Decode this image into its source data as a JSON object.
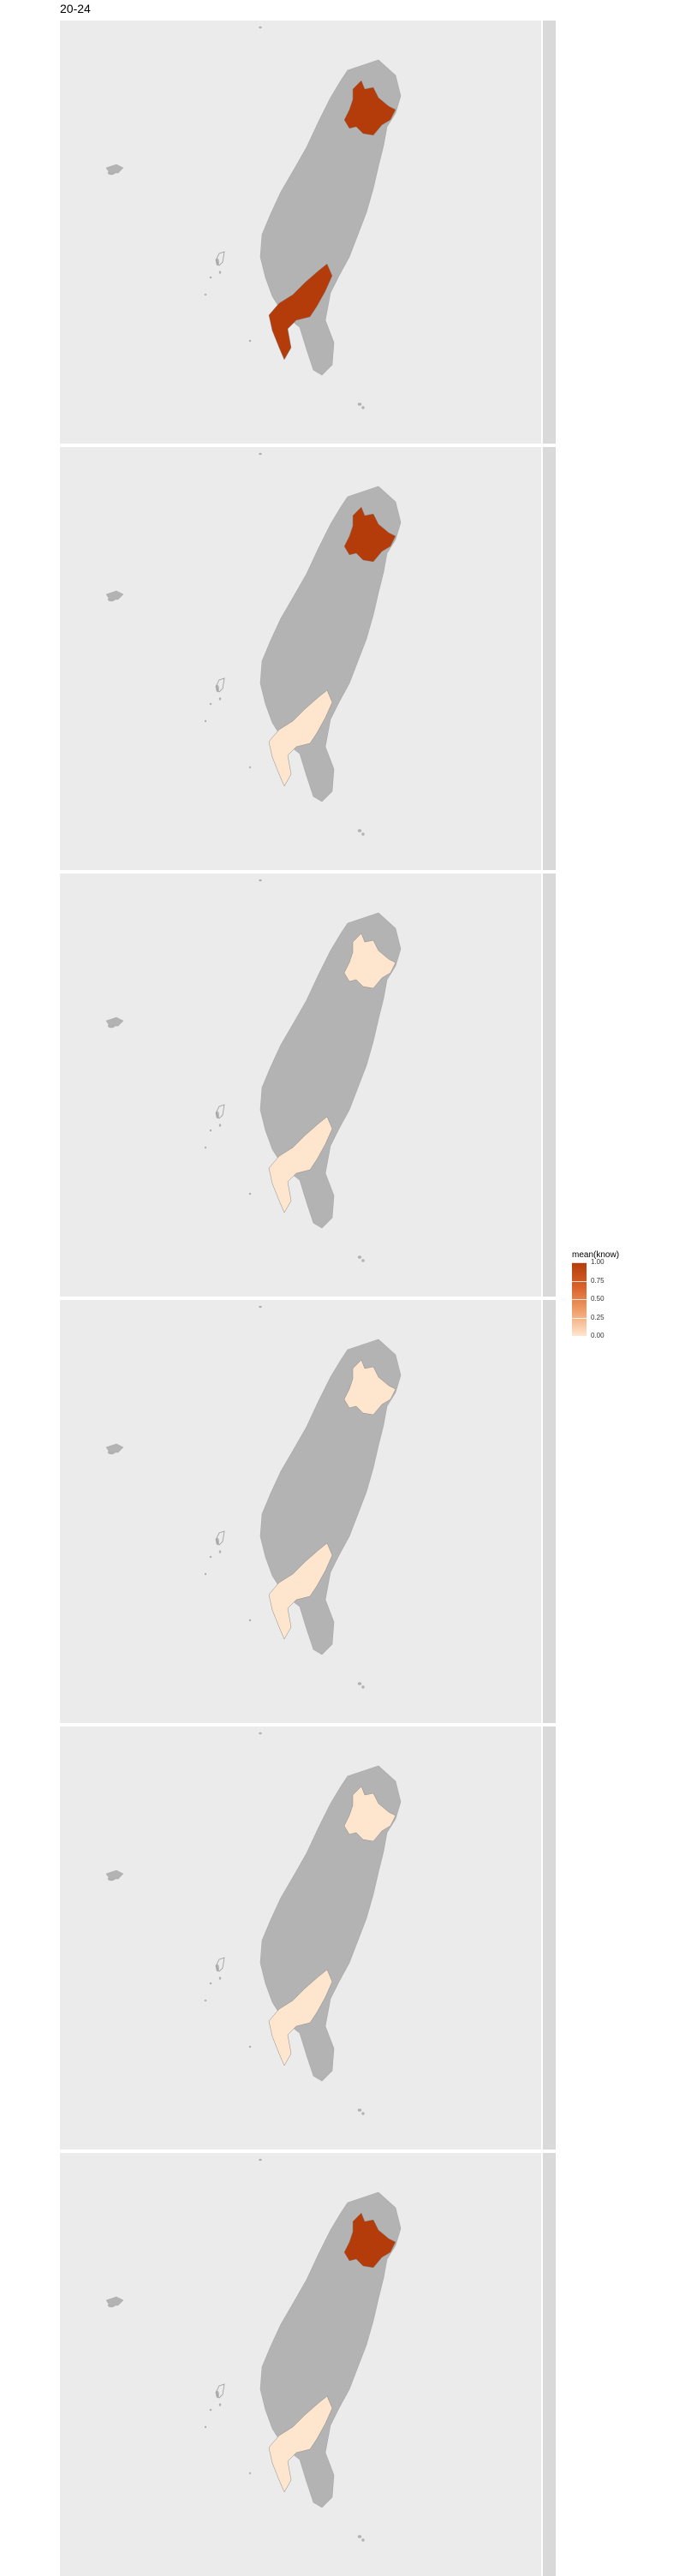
{
  "title": "20-24",
  "legend": {
    "title": "mean(know)",
    "ticks": [
      "1.00",
      "0.75",
      "0.50",
      "0.25",
      "0.00"
    ],
    "values": [
      1.0,
      0.75,
      0.5,
      0.25,
      0.0
    ],
    "low_color": "#fee6ce",
    "high_color": "#b33c0a"
  },
  "colors": {
    "panel_background": "#ebebeb",
    "land_no_data": "#b3b3b3",
    "strip_background": "#d9d9d9"
  },
  "map_data": {
    "type": "choropleth",
    "regions_shown": [
      "taipei-newtaipei",
      "tainan-kaohsiung"
    ],
    "facets": [
      {
        "strip_label": "",
        "north": 1.0,
        "south": 1.0
      },
      {
        "strip_label": "",
        "north": 1.0,
        "south": 0.0
      },
      {
        "strip_label": "",
        "north": 0.0,
        "south": 0.0
      },
      {
        "strip_label": "",
        "north": 0.0,
        "south": 0.0
      },
      {
        "strip_label": "",
        "north": 0.0,
        "south": 0.0
      },
      {
        "strip_label": "",
        "north": 1.0,
        "south": 0.0
      }
    ]
  }
}
